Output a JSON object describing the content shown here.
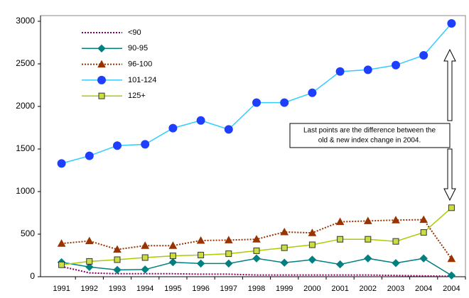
{
  "chart_data": {
    "type": "line",
    "categories": [
      "1991",
      "1992",
      "1993",
      "1994",
      "1995",
      "1996",
      "1997",
      "1998",
      "1999",
      "2000",
      "2001",
      "2002",
      "2003",
      "2004",
      "2004"
    ],
    "series": [
      {
        "name": "<90",
        "color": "#800060",
        "marker": "none",
        "dash": true,
        "values": [
          120,
          45,
          35,
          35,
          35,
          30,
          30,
          20,
          20,
          20,
          20,
          20,
          15,
          10,
          5
        ]
      },
      {
        "name": "90-95",
        "color": "#008080",
        "marker": "diamond",
        "dash": false,
        "values": [
          170,
          115,
          80,
          85,
          170,
          155,
          155,
          215,
          165,
          200,
          145,
          215,
          160,
          215,
          15
        ]
      },
      {
        "name": "96-100",
        "color": "#993300",
        "marker": "triangle",
        "dash": true,
        "values": [
          390,
          420,
          320,
          365,
          365,
          425,
          430,
          440,
          525,
          515,
          645,
          655,
          665,
          670,
          210
        ]
      },
      {
        "name": "101-124",
        "color": "#1f3fff",
        "marker": "circle",
        "dash": false,
        "line_color": "#33ccff",
        "values": [
          1330,
          1420,
          1540,
          1555,
          1745,
          1835,
          1730,
          2045,
          2045,
          2160,
          2410,
          2430,
          2485,
          2600,
          2975
        ]
      },
      {
        "name": "125+",
        "color": "#aacc00",
        "marker": "square",
        "dash": false,
        "marker_fill": "#ccdd44",
        "values": [
          140,
          180,
          200,
          225,
          245,
          255,
          270,
          305,
          340,
          375,
          440,
          440,
          415,
          520,
          810
        ]
      }
    ],
    "ylim": [
      0,
      3000
    ],
    "yticks": [
      0,
      500,
      1000,
      1500,
      2000,
      2500,
      3000
    ],
    "grid": false,
    "legend": "upper-left",
    "annotation": [
      "Last points are the difference between the",
      "old & new index change in 2004."
    ]
  }
}
